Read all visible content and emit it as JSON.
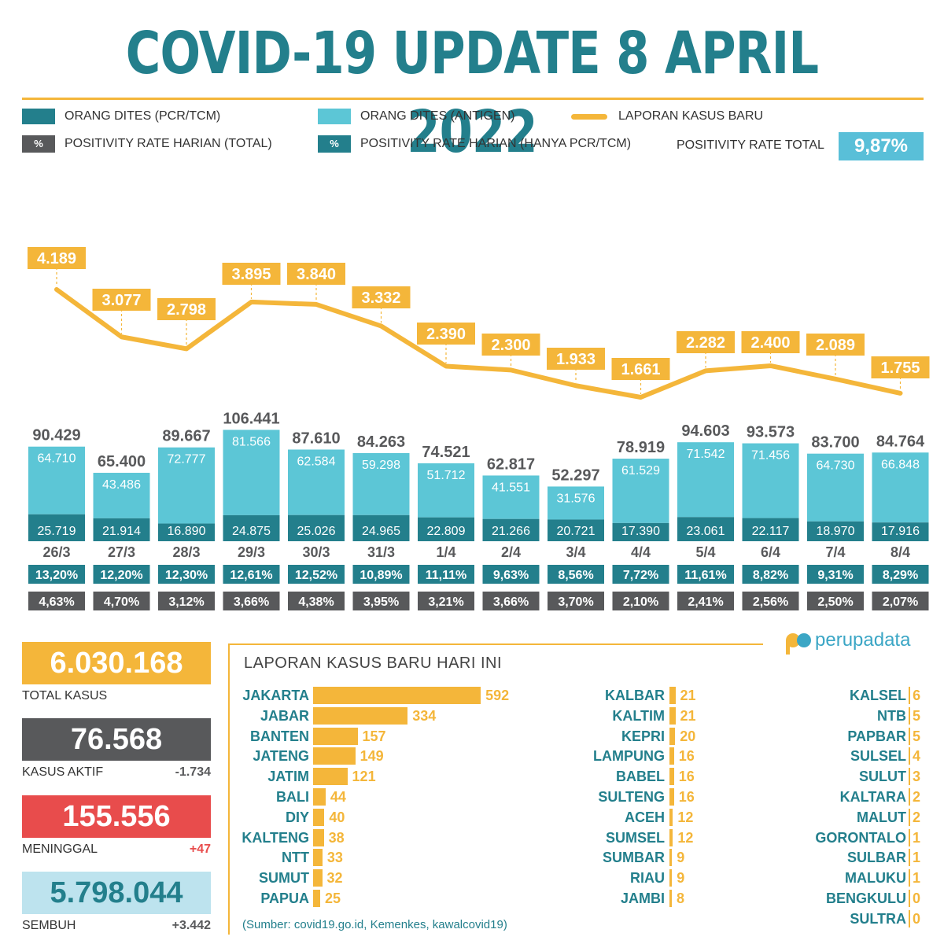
{
  "title": "COVID-19 UPDATE 8 APRIL 2022",
  "legend": {
    "pcr_label": "ORANG DITES (PCR/TCM)",
    "antigen_label": "ORANG DITES (ANTIGEN)",
    "cases_label": "LAPORAN KASUS BARU",
    "pr_total_label": "POSITIVITY RATE HARIAN (TOTAL)",
    "pr_pcr_label": "POSITIVITY RATE HARIAN (HANYA PCR/TCM)",
    "pct_symbol": "%",
    "positivity_total_label": "POSITIVITY RATE TOTAL",
    "positivity_total_value": "9,87%"
  },
  "colors": {
    "pcr": "#237f8c",
    "antigen": "#5cc6d6",
    "cases": "#f4b63a",
    "grey": "#58595b",
    "title": "#237f8c",
    "red": "#e84c4c",
    "light_blue": "#bde3ee"
  },
  "chart_data": {
    "type": "bar",
    "categories": [
      "26/3",
      "27/3",
      "28/3",
      "29/3",
      "30/3",
      "31/3",
      "1/4",
      "2/4",
      "3/4",
      "4/4",
      "5/4",
      "6/4",
      "7/4",
      "8/4"
    ],
    "totals": [
      "90.429",
      "65.400",
      "89.667",
      "106.441",
      "87.610",
      "84.263",
      "74.521",
      "62.817",
      "52.297",
      "78.919",
      "94.603",
      "93.573",
      "83.700",
      "84.764"
    ],
    "series": [
      {
        "name": "ORANG DITES (PCR/TCM)",
        "values": [
          25719,
          21914,
          16890,
          24875,
          25026,
          24965,
          22809,
          21266,
          20721,
          17390,
          23061,
          22117,
          18970,
          17916
        ],
        "labels": [
          "25.719",
          "21.914",
          "16.890",
          "24.875",
          "25.026",
          "24.965",
          "22.809",
          "21.266",
          "20.721",
          "17.390",
          "23.061",
          "22.117",
          "18.970",
          "17.916"
        ]
      },
      {
        "name": "ORANG DITES (ANTIGEN)",
        "values": [
          64710,
          43486,
          72777,
          81566,
          62584,
          59298,
          51712,
          41551,
          31576,
          61529,
          71542,
          71456,
          64730,
          66848
        ],
        "labels": [
          "64.710",
          "43.486",
          "72.777",
          "81.566",
          "62.584",
          "59.298",
          "51.712",
          "41.551",
          "31.576",
          "61.529",
          "71.542",
          "71.456",
          "64.730",
          "66.848"
        ]
      },
      {
        "name": "LAPORAN KASUS BARU",
        "type": "line",
        "values": [
          4189,
          3077,
          2798,
          3895,
          3840,
          3332,
          2390,
          2300,
          1933,
          1661,
          2282,
          2400,
          2089,
          1755
        ],
        "labels": [
          "4.189",
          "3.077",
          "2.798",
          "3.895",
          "3.840",
          "3.332",
          "2.390",
          "2.300",
          "1.933",
          "1.661",
          "2.282",
          "2.400",
          "2.089",
          "1.755"
        ]
      }
    ],
    "pr_pcr": [
      "13,20%",
      "12,20%",
      "12,30%",
      "12,61%",
      "12,52%",
      "10,89%",
      "11,11%",
      "9,63%",
      "8,56%",
      "7,72%",
      "11,61%",
      "8,82%",
      "9,31%",
      "8,29%"
    ],
    "pr_total": [
      "4,63%",
      "4,70%",
      "3,12%",
      "3,66%",
      "4,38%",
      "3,95%",
      "3,21%",
      "3,66%",
      "3,70%",
      "2,10%",
      "2,41%",
      "2,56%",
      "2,50%",
      "2,07%"
    ]
  },
  "stats": {
    "total": {
      "value": "6.030.168",
      "label": "TOTAL KASUS"
    },
    "active": {
      "value": "76.568",
      "label": "KASUS AKTIF",
      "delta": "-1.734"
    },
    "deaths": {
      "value": "155.556",
      "label": "MENINGGAL",
      "delta": "+47"
    },
    "recovered": {
      "value": "5.798.044",
      "label": "SEMBUH",
      "delta": "+3.442"
    }
  },
  "cases_today": {
    "title": "LAPORAN KASUS BARU HARI INI",
    "col1": [
      {
        "name": "JAKARTA",
        "value": 592
      },
      {
        "name": "JABAR",
        "value": 334
      },
      {
        "name": "BANTEN",
        "value": 157
      },
      {
        "name": "JATENG",
        "value": 149
      },
      {
        "name": "JATIM",
        "value": 121
      },
      {
        "name": "BALI",
        "value": 44
      },
      {
        "name": "DIY",
        "value": 40
      },
      {
        "name": "KALTENG",
        "value": 38
      },
      {
        "name": "NTT",
        "value": 33
      },
      {
        "name": "SUMUT",
        "value": 32
      },
      {
        "name": "PAPUA",
        "value": 25
      }
    ],
    "col2": [
      {
        "name": "KALBAR",
        "value": 21
      },
      {
        "name": "KALTIM",
        "value": 21
      },
      {
        "name": "KEPRI",
        "value": 20
      },
      {
        "name": "LAMPUNG",
        "value": 16
      },
      {
        "name": "BABEL",
        "value": 16
      },
      {
        "name": "SULTENG",
        "value": 16
      },
      {
        "name": "ACEH",
        "value": 12
      },
      {
        "name": "SUMSEL",
        "value": 12
      },
      {
        "name": "SUMBAR",
        "value": 9
      },
      {
        "name": "RIAU",
        "value": 9
      },
      {
        "name": "JAMBI",
        "value": 8
      }
    ],
    "col3": [
      {
        "name": "KALSEL",
        "value": 6
      },
      {
        "name": "NTB",
        "value": 5
      },
      {
        "name": "PAPBAR",
        "value": 5
      },
      {
        "name": "SULSEL",
        "value": 4
      },
      {
        "name": "SULUT",
        "value": 3
      },
      {
        "name": "KALTARA",
        "value": 2
      },
      {
        "name": "MALUT",
        "value": 2
      },
      {
        "name": "GORONTALO",
        "value": 1
      },
      {
        "name": "SULBAR",
        "value": 1
      },
      {
        "name": "MALUKU",
        "value": 1
      },
      {
        "name": "BENGKULU",
        "value": 0
      },
      {
        "name": "SULTRA",
        "value": 0
      }
    ]
  },
  "source": "(Sumber: covid19.go.id, Kemenkes, kawalcovid19)",
  "brand": "perupadata"
}
